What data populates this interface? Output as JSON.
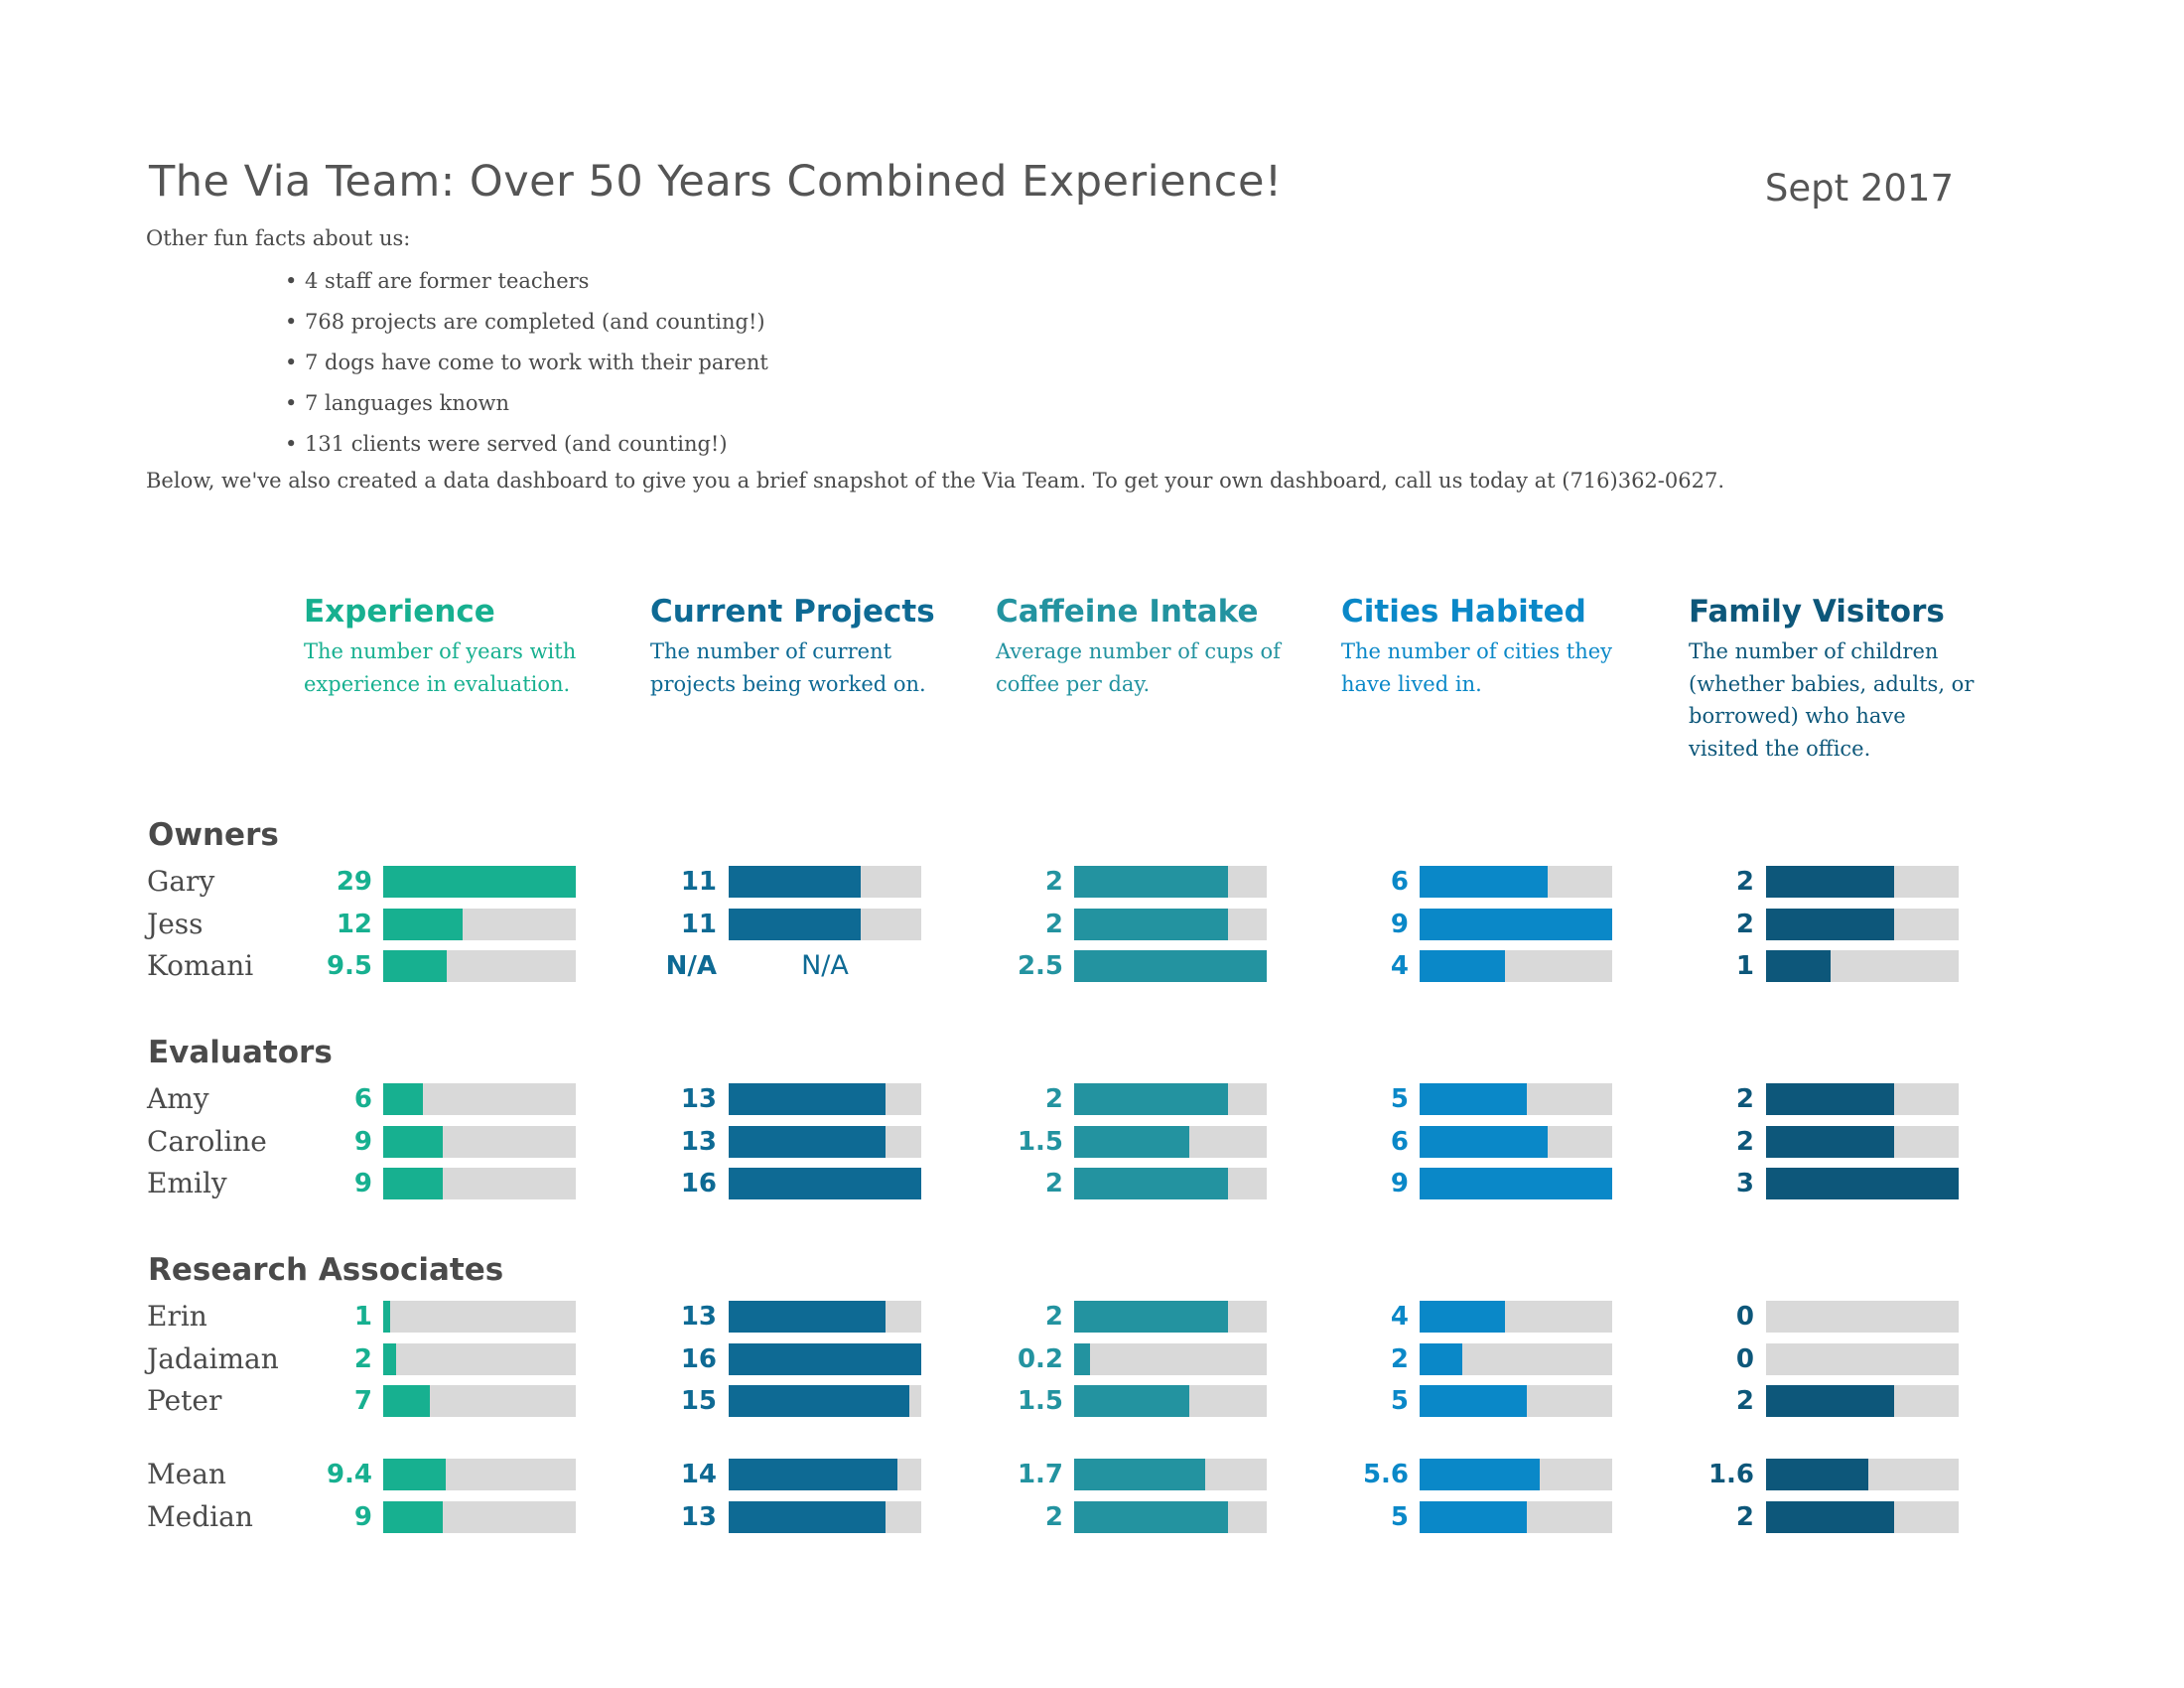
{
  "header": {
    "title": "The Via Team: Over 50 Years Combined Experience!",
    "date": "Sept 2017",
    "intro": "Other fun facts about us:",
    "facts": [
      "4 staff are former teachers",
      "768 projects are completed (and counting!)",
      "7 dogs have come to work with their parent",
      "7 languages known",
      "131 clients were served (and counting!)"
    ],
    "below": "Below, we've also created a data dashboard to give you a brief snapshot of the Via Team. To get your own dashboard, call us today at (716)362-0627."
  },
  "chart_data": {
    "type": "bar",
    "columns": [
      {
        "title": "Experience",
        "description": "The number of years with experience in evaluation.",
        "color": "#17b090",
        "max": 29
      },
      {
        "title": "Current Projects",
        "description": "The number of current projects being worked on.",
        "color": "#0e6a94",
        "max": 16
      },
      {
        "title": "Caffeine Intake",
        "description": "Average number of cups of coffee per day.",
        "color": "#2393a0",
        "max": 2.5
      },
      {
        "title": "Cities Habited",
        "description": "The number of cities they have lived in.",
        "color": "#0a88c8",
        "max": 9
      },
      {
        "title": "Family Visitors",
        "description": "The number of children (whether babies, adults, or borrowed) who have visited the office.",
        "color": "#0d577a",
        "max": 3
      }
    ],
    "groups": [
      {
        "label": "Owners",
        "rows": [
          {
            "name": "Gary",
            "values": [
              "29",
              "11",
              "2",
              "6",
              "2"
            ]
          },
          {
            "name": "Jess",
            "values": [
              "12",
              "11",
              "2",
              "9",
              "2"
            ]
          },
          {
            "name": "Komani",
            "values": [
              "9.5",
              "N/A",
              "2.5",
              "4",
              "1"
            ]
          }
        ]
      },
      {
        "label": "Evaluators",
        "rows": [
          {
            "name": "Amy",
            "values": [
              "6",
              "13",
              "2",
              "5",
              "2"
            ]
          },
          {
            "name": "Caroline",
            "values": [
              "9",
              "13",
              "1.5",
              "6",
              "2"
            ]
          },
          {
            "name": "Emily",
            "values": [
              "9",
              "16",
              "2",
              "9",
              "3"
            ]
          }
        ]
      },
      {
        "label": "Research Associates",
        "rows": [
          {
            "name": "Erin",
            "values": [
              "1",
              "13",
              "2",
              "4",
              "0"
            ]
          },
          {
            "name": "Jadaiman",
            "values": [
              "2",
              "16",
              "0.2",
              "2",
              "0"
            ]
          },
          {
            "name": "Peter",
            "values": [
              "7",
              "15",
              "1.5",
              "5",
              "2"
            ]
          }
        ]
      },
      {
        "label": "",
        "rows": [
          {
            "name": "Mean",
            "values": [
              "9.4",
              "14",
              "1.7",
              "5.6",
              "1.6"
            ]
          },
          {
            "name": "Median",
            "values": [
              "9",
              "13",
              "2",
              "5",
              "2"
            ]
          }
        ]
      }
    ],
    "na_label": "N/A",
    "track_color": "#d9d9d9"
  }
}
